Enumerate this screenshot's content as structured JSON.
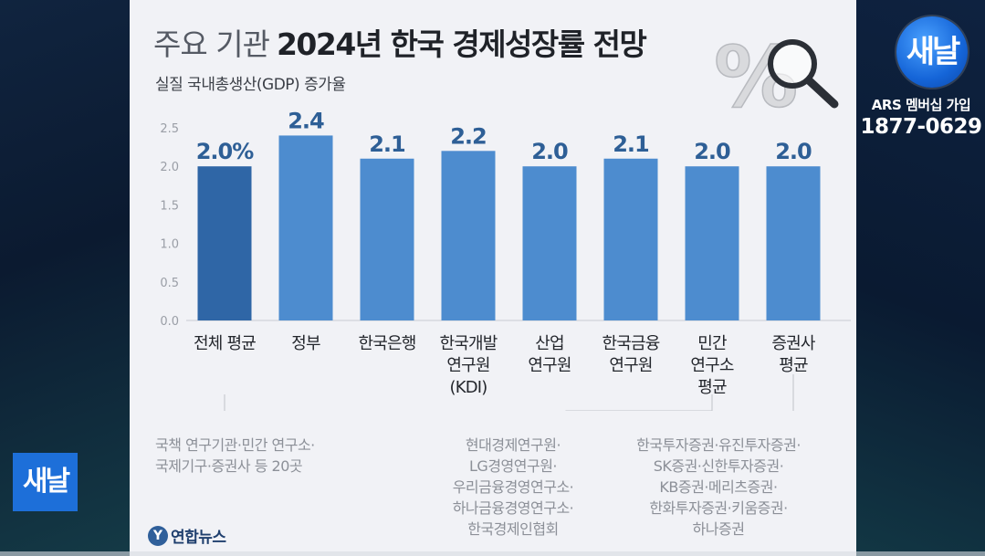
{
  "title_light": "주요 기관",
  "title_bold": "2024년 한국 경제성장률 전망",
  "subtitle": "실질 국내총생산(GDP) 증가율",
  "chart_data": {
    "type": "bar",
    "title": "주요 기관 2024년 한국 경제성장률 전망",
    "subtitle": "실질 국내총생산(GDP) 증가율",
    "categories": [
      [
        "전체 평균"
      ],
      [
        "정부"
      ],
      [
        "한국은행"
      ],
      [
        "한국개발",
        "연구원",
        "(KDI)"
      ],
      [
        "산업",
        "연구원"
      ],
      [
        "한국금융",
        "연구원"
      ],
      [
        "민간",
        "연구소",
        "평균"
      ],
      [
        "증권사",
        "평균"
      ]
    ],
    "values": [
      2.0,
      2.4,
      2.1,
      2.2,
      2.0,
      2.1,
      2.0,
      2.0
    ],
    "value_labels": [
      "2.0%",
      "2.4",
      "2.1",
      "2.2",
      "2.0",
      "2.1",
      "2.0",
      "2.0"
    ],
    "ylim": [
      0,
      2.5
    ],
    "yticks": [
      "0.0",
      "0.5",
      "1.0",
      "1.5",
      "2.0",
      "2.5"
    ],
    "grid": false,
    "xlabel": "",
    "ylabel": "",
    "colors": {
      "highlight": "#2f66a6",
      "bar": "#4d8ccf",
      "value_label": "#2e5f96"
    }
  },
  "notes": {
    "average": [
      "국책 연구기관·민간 연구소·",
      "국제기구·증권사 등 20곳"
    ],
    "private_institutes": [
      "현대경제연구원·",
      "LG경영연구원·",
      "우리금융경영연구소·",
      "하나금융경영연구소·",
      "한국경제인협회"
    ],
    "securities": [
      "한국투자증권·유진투자증권·",
      "SK증권·신한투자증권·",
      "KB증권·메리츠증권·",
      "한화투자증권·키움증권·",
      "하나증권"
    ]
  },
  "logo_text": "연합뉴스",
  "logo_mark": "Y",
  "deco_text": "%",
  "channel": {
    "logo_text": "새날",
    "ars_label": "ARS 멤버십 가입",
    "phone": "1877-0629"
  }
}
